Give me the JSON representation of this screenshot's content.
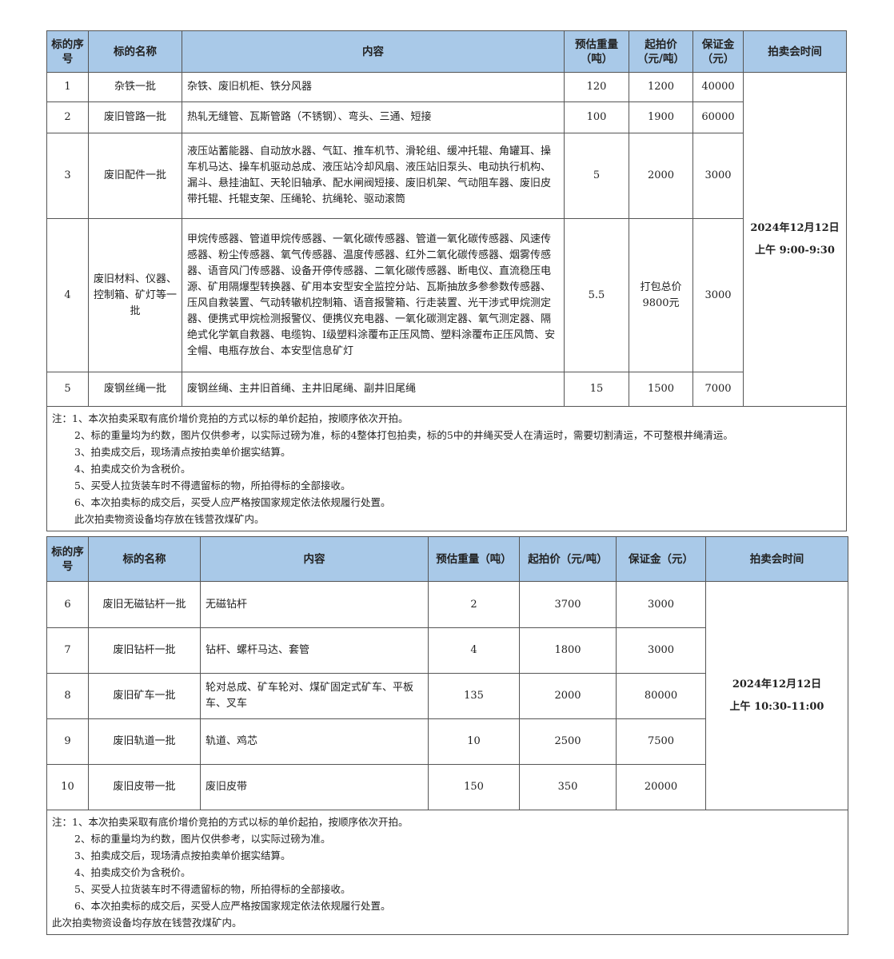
{
  "headers": [
    "标的序号",
    "标的名称",
    "内容",
    "预估重量（吨）",
    "起拍价（元/吨）",
    "保证金（元）",
    "拍卖会时间"
  ],
  "table1": {
    "rows": [
      {
        "no": "1",
        "name": "杂铁一批",
        "content": "杂铁、废旧机柜、铁分风器",
        "weight": "120",
        "price": "1200",
        "deposit": "40000"
      },
      {
        "no": "2",
        "name": "废旧管路一批",
        "content": "热轧无缝管、瓦斯管路（不锈钢）、弯头、三通、短接",
        "weight": "100",
        "price": "1900",
        "deposit": "60000"
      },
      {
        "no": "3",
        "name": "废旧配件一批",
        "content": "液压站蓄能器、自动放水器、气缸、推车机节、滑轮组、缓冲托辊、角罐耳、操车机马达、操车机驱动总成、液压站冷却风扇、液压站旧泵头、电动执行机构、漏斗、悬挂油缸、天轮旧轴承、配水闸阀短接、废旧机架、气动阻车器、废旧皮带托辊、托辊支架、压绳轮、抗绳轮、驱动滚筒",
        "weight": "5",
        "price": "2000",
        "deposit": "3000"
      },
      {
        "no": "4",
        "name": "废旧材料、仪器、控制箱、矿灯等一批",
        "content": "甲烷传感器、管道甲烷传感器、一氧化碳传感器、管道一氧化碳传感器、风速传感器、粉尘传感器、氧气传感器、温度传感器、红外二氧化碳传感器、烟雾传感器、语音风门传感器、设备开停传感器、二氧化碳传感器、断电仪、直流稳压电源、矿用隔爆型转换器、矿用本安型安全监控分站、瓦斯抽放多参参数传感器、压风自救装置、气动转辙机控制箱、语音报警箱、行走装置、光干涉式甲烷测定器、便携式甲烷检测报警仪、便携仪充电器、一氧化碳测定器、氧气测定器、隔绝式化学氧自救器、电缆钩、I级塑料涂覆布正压风筒、塑料涂覆布正压风筒、安全帽、电瓶存放台、本安型信息矿灯",
        "weight": "5.5",
        "price": "打包总价9800元",
        "deposit": "3000"
      },
      {
        "no": "5",
        "name": "废钢丝绳一批",
        "content": "废钢丝绳、主井旧首绳、主井旧尾绳、副井旧尾绳",
        "weight": "15",
        "price": "1500",
        "deposit": "7000"
      }
    ],
    "time": [
      "2024年12月12日",
      "上午 9:00-9:30"
    ],
    "notes": [
      "注：1、本次拍卖采取有底价增价竞拍的方式以标的单价起拍，按顺序依次开拍。",
      "2、标的重量均为约数，图片仅供参考，以实际过磅为准，标的4整体打包拍卖，标的5中的井绳买受人在清运时，需要切割清运，不可整根井绳清运。",
      "3、拍卖成交后，现场清点按拍卖单价据实结算。",
      "4、拍卖成交价为含税价。",
      "5、买受人拉货装车时不得遗留标的物，所拍得标的全部接收。",
      "6、本次拍卖标的成交后，买受人应严格按国家规定依法依规履行处置。",
      "此次拍卖物资设备均存放在钱营孜煤矿内。"
    ]
  },
  "table2": {
    "rows": [
      {
        "no": "6",
        "name": "废旧无磁钻杆一批",
        "content": "无磁钻杆",
        "weight": "2",
        "price": "3700",
        "deposit": "3000"
      },
      {
        "no": "7",
        "name": "废旧钻杆一批",
        "content": "钻杆、螺杆马达、套管",
        "weight": "4",
        "price": "1800",
        "deposit": "3000"
      },
      {
        "no": "8",
        "name": "废旧矿车一批",
        "content": "轮对总成、矿车轮对、煤矿固定式矿车、平板车、叉车",
        "weight": "135",
        "price": "2000",
        "deposit": "80000"
      },
      {
        "no": "9",
        "name": "废旧轨道一批",
        "content": "轨道、鸡芯",
        "weight": "10",
        "price": "2500",
        "deposit": "7500"
      },
      {
        "no": "10",
        "name": "废旧皮带一批",
        "content": "废旧皮带",
        "weight": "150",
        "price": "350",
        "deposit": "20000"
      }
    ],
    "time": [
      "2024年12月12日",
      "上午 10:30-11:00"
    ],
    "notes": [
      "注：1、本次拍卖采取有底价增价竞拍的方式以标的单价起拍，按顺序依次开拍。",
      "2、标的重量均为约数，图片仅供参考，以实际过磅为准。",
      "3、拍卖成交后，现场清点按拍卖单价据实结算。",
      "4、拍卖成交价为含税价。",
      "5、买受人拉货装车时不得遗留标的物，所拍得标的全部接收。",
      "6、本次拍卖标的成交后，买受人应严格按国家规定依法依规履行处置。",
      "此次拍卖物资设备均存放在钱营孜煤矿内。"
    ]
  },
  "colors": {
    "header_bg": "#a9c9e8",
    "border": "#555555"
  }
}
